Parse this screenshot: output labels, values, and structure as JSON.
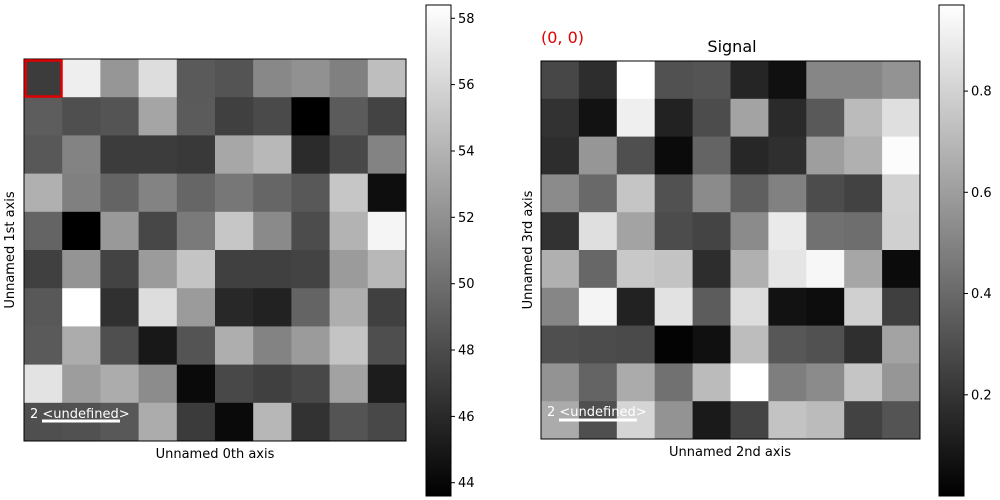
{
  "chart_data": [
    {
      "type": "heatmap",
      "title": "",
      "xlabel": "Unnamed 0th axis",
      "ylabel": "Unnamed 1st axis",
      "scalebar_label": "2 <undefined>",
      "selection_marker": "red square at cell (0, 0)",
      "colormap": "gray",
      "clim": [
        43.6,
        58.4
      ],
      "colorbar_ticks": [
        "44",
        "46",
        "48",
        "50",
        "52",
        "54",
        "56",
        "58"
      ],
      "grid": false,
      "values": [
        [
          47.1,
          57.4,
          52.3,
          56.4,
          48.8,
          48.5,
          51.5,
          52.0,
          51.0,
          54.6
        ],
        [
          49.0,
          48.2,
          48.5,
          53.2,
          48.9,
          47.3,
          47.9,
          43.6,
          48.9,
          47.5
        ],
        [
          48.7,
          51.2,
          47.1,
          47.1,
          46.9,
          53.3,
          54.3,
          46.1,
          47.8,
          51.2
        ],
        [
          53.8,
          51.0,
          49.4,
          51.2,
          49.5,
          50.5,
          49.5,
          48.7,
          55.1,
          44.4
        ],
        [
          49.4,
          43.6,
          52.5,
          47.7,
          50.7,
          55.1,
          51.6,
          48.0,
          54.0,
          57.8
        ],
        [
          47.3,
          52.2,
          47.5,
          52.6,
          55.0,
          47.3,
          47.3,
          47.5,
          52.6,
          54.3
        ],
        [
          48.7,
          58.4,
          46.4,
          56.4,
          52.6,
          45.9,
          45.6,
          49.4,
          53.7,
          47.3
        ],
        [
          48.8,
          53.6,
          48.2,
          45.0,
          48.5,
          53.7,
          51.2,
          52.6,
          55.0,
          48.1
        ],
        [
          56.8,
          52.7,
          53.6,
          51.7,
          44.2,
          47.8,
          47.3,
          47.8,
          53.0,
          45.2
        ],
        [
          48.2,
          48.3,
          48.7,
          53.6,
          47.0,
          44.2,
          54.2,
          46.5,
          48.5,
          47.8
        ]
      ]
    },
    {
      "type": "heatmap",
      "title": "Signal",
      "xlabel": "Unnamed 2nd axis",
      "ylabel": "Unnamed 3rd axis",
      "scalebar_label": "2 <undefined>",
      "index_label": "(0, 0)",
      "index_label_color": "#e00000",
      "colormap": "gray",
      "clim": [
        0.0,
        0.97
      ],
      "colorbar_ticks": [
        "0.2",
        "0.4",
        "0.6",
        "0.8"
      ],
      "grid": false,
      "values": [
        [
          0.27,
          0.17,
          0.97,
          0.31,
          0.32,
          0.14,
          0.06,
          0.51,
          0.51,
          0.56
        ],
        [
          0.19,
          0.07,
          0.91,
          0.13,
          0.29,
          0.62,
          0.16,
          0.34,
          0.71,
          0.85
        ],
        [
          0.17,
          0.57,
          0.3,
          0.04,
          0.38,
          0.15,
          0.18,
          0.6,
          0.67,
          0.96
        ],
        [
          0.53,
          0.4,
          0.75,
          0.31,
          0.53,
          0.36,
          0.49,
          0.29,
          0.25,
          0.8
        ],
        [
          0.19,
          0.85,
          0.62,
          0.29,
          0.26,
          0.53,
          0.89,
          0.43,
          0.42,
          0.79
        ],
        [
          0.67,
          0.39,
          0.76,
          0.74,
          0.17,
          0.67,
          0.87,
          0.94,
          0.63,
          0.04
        ],
        [
          0.51,
          0.93,
          0.13,
          0.86,
          0.35,
          0.84,
          0.07,
          0.05,
          0.79,
          0.24
        ],
        [
          0.3,
          0.29,
          0.28,
          0.01,
          0.06,
          0.72,
          0.33,
          0.31,
          0.18,
          0.62
        ],
        [
          0.56,
          0.38,
          0.65,
          0.43,
          0.71,
          0.97,
          0.48,
          0.53,
          0.75,
          0.57
        ],
        [
          0.65,
          0.3,
          0.81,
          0.56,
          0.1,
          0.26,
          0.74,
          0.71,
          0.25,
          0.32
        ]
      ]
    }
  ]
}
